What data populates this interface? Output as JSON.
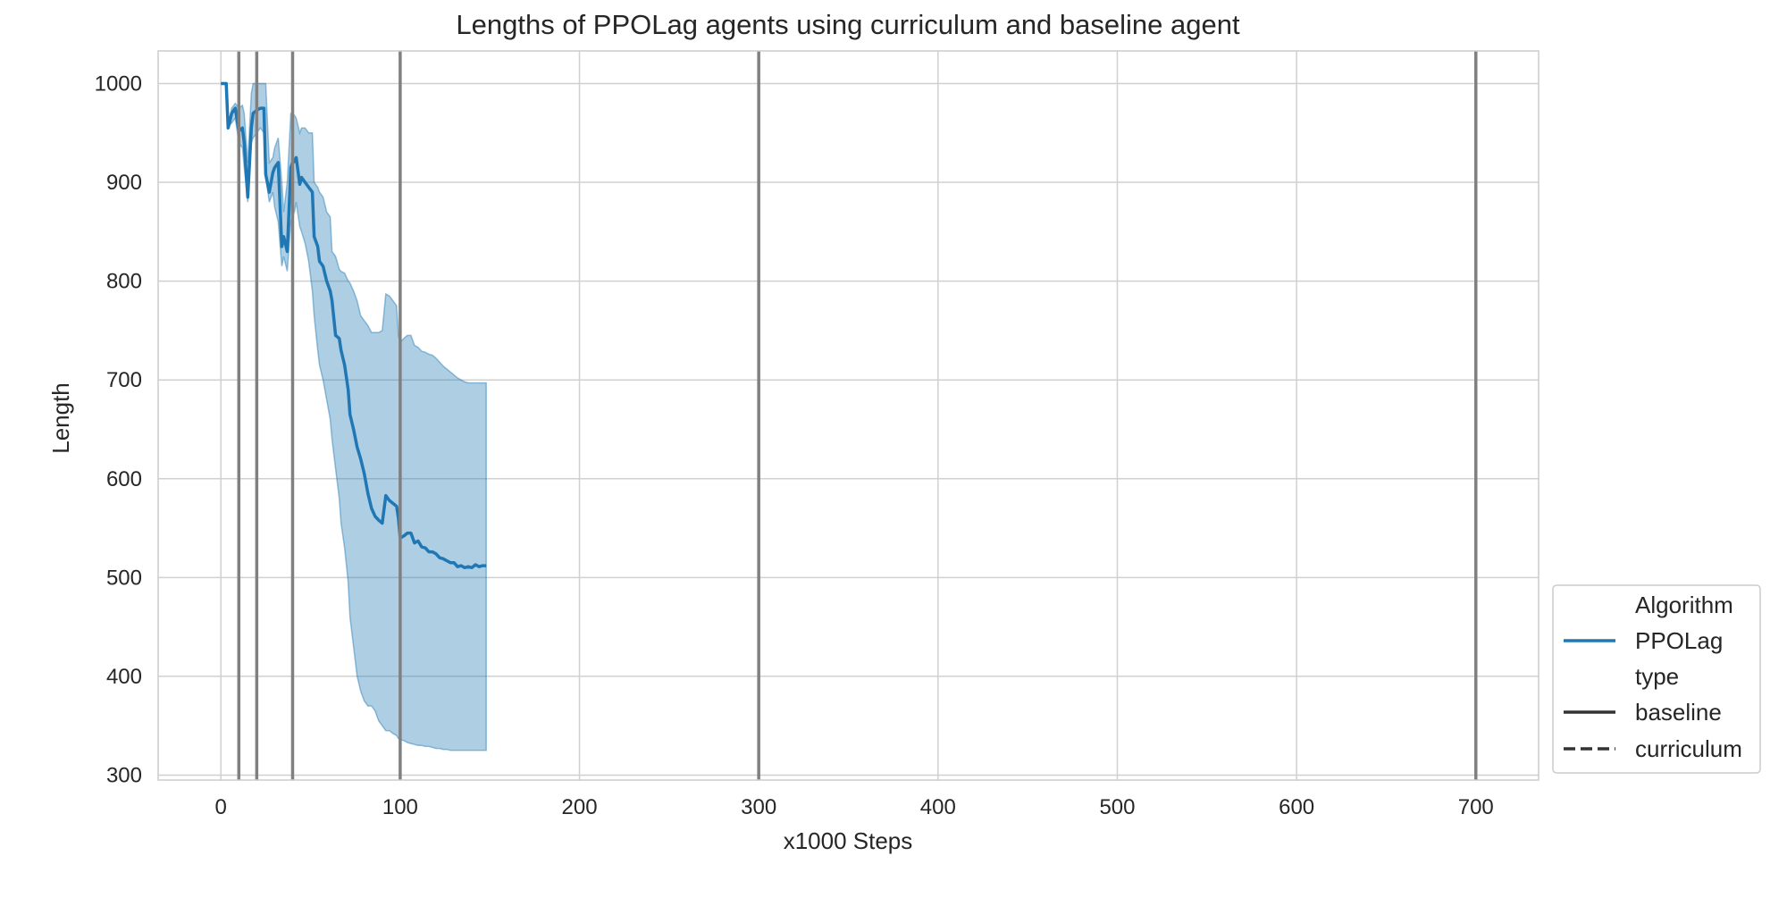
{
  "chart_data": {
    "type": "line",
    "title": "Lengths of PPOLag agents using curriculum and baseline agent",
    "xlabel": "x1000 Steps",
    "ylabel": "Length",
    "xlim": [
      -35,
      735
    ],
    "ylim": [
      295,
      1033
    ],
    "xticks": [
      0,
      100,
      200,
      300,
      400,
      500,
      600,
      700
    ],
    "yticks": [
      300,
      400,
      500,
      600,
      700,
      800,
      900,
      1000
    ],
    "grid": true,
    "legend": {
      "placement": "lower-right outside plot",
      "entries": [
        {
          "label": "Algorithm",
          "kind": "header"
        },
        {
          "label": "PPOLag",
          "kind": "color",
          "color": "#1f77b4"
        },
        {
          "label": "type",
          "kind": "header"
        },
        {
          "label": "baseline",
          "kind": "solid"
        },
        {
          "label": "curriculum",
          "kind": "dashed"
        }
      ]
    },
    "vertical_lines": [
      10,
      20,
      40,
      100,
      300,
      700
    ],
    "colors": {
      "line": "#1f77b4",
      "band": "#1f77b4",
      "vline": "#808080",
      "grid": "#d0d0d0",
      "legend_style": "#333333"
    },
    "series": [
      {
        "name": "PPOLag",
        "style": "baseline",
        "x": [
          0,
          2,
          3,
          4,
          5,
          6,
          8,
          10,
          12,
          13,
          15,
          17,
          18,
          20,
          22,
          24,
          25,
          27,
          29,
          30,
          32,
          34,
          35,
          37,
          39,
          40,
          41,
          42,
          44,
          45,
          47,
          49,
          51,
          52,
          54,
          55,
          57,
          59,
          61,
          62,
          64,
          66,
          67,
          69,
          71,
          72,
          74,
          76,
          78,
          80,
          82,
          84,
          86,
          88,
          90,
          92,
          94,
          96,
          98,
          99,
          100,
          102,
          104,
          106,
          108,
          110,
          112,
          114,
          116,
          118,
          120,
          122,
          124,
          126,
          128,
          130,
          132,
          134,
          136,
          138,
          140,
          142,
          144,
          146,
          148
        ],
        "y": [
          1000,
          1000,
          1000,
          955,
          962,
          970,
          975,
          952,
          955,
          940,
          885,
          955,
          970,
          973,
          975,
          975,
          908,
          890,
          910,
          915,
          920,
          835,
          845,
          830,
          915,
          920,
          921,
          925,
          898,
          905,
          900,
          895,
          890,
          845,
          835,
          820,
          815,
          800,
          790,
          780,
          745,
          742,
          730,
          715,
          690,
          665,
          650,
          632,
          620,
          605,
          585,
          570,
          562,
          558,
          555,
          583,
          578,
          575,
          572,
          560,
          540,
          542,
          545,
          545,
          535,
          537,
          531,
          530,
          526,
          526,
          524,
          520,
          519,
          517,
          515,
          515,
          511,
          512,
          510,
          511,
          510,
          513,
          511,
          512,
          512
        ],
        "lower": [
          1000,
          1000,
          1000,
          955,
          958,
          960,
          965,
          940,
          935,
          915,
          880,
          940,
          945,
          950,
          955,
          950,
          905,
          880,
          890,
          875,
          860,
          815,
          825,
          810,
          860,
          866,
          870,
          880,
          855,
          850,
          838,
          820,
          790,
          765,
          730,
          715,
          700,
          680,
          660,
          640,
          610,
          580,
          555,
          530,
          495,
          460,
          430,
          400,
          385,
          375,
          370,
          370,
          365,
          355,
          350,
          345,
          345,
          342,
          340,
          337,
          336,
          335,
          333,
          332,
          331,
          330,
          330,
          329,
          329,
          328,
          327,
          327,
          326,
          326,
          325,
          325,
          325,
          325,
          325,
          325,
          325,
          325,
          325,
          325,
          325
        ],
        "upper": [
          1000,
          1000,
          1000,
          960,
          966,
          975,
          980,
          975,
          978,
          970,
          920,
          990,
          1000,
          1000,
          1000,
          1000,
          1000,
          920,
          925,
          935,
          945,
          900,
          870,
          900,
          970,
          970,
          968,
          965,
          950,
          955,
          955,
          950,
          950,
          900,
          895,
          890,
          885,
          870,
          865,
          830,
          825,
          812,
          810,
          808,
          800,
          798,
          790,
          780,
          765,
          760,
          755,
          748,
          748,
          748,
          750,
          787,
          785,
          780,
          775,
          745,
          738,
          742,
          745,
          745,
          735,
          733,
          729,
          728,
          726,
          725,
          722,
          718,
          714,
          711,
          708,
          705,
          702,
          700,
          698,
          697,
          697,
          697,
          697,
          697,
          697
        ]
      }
    ]
  }
}
